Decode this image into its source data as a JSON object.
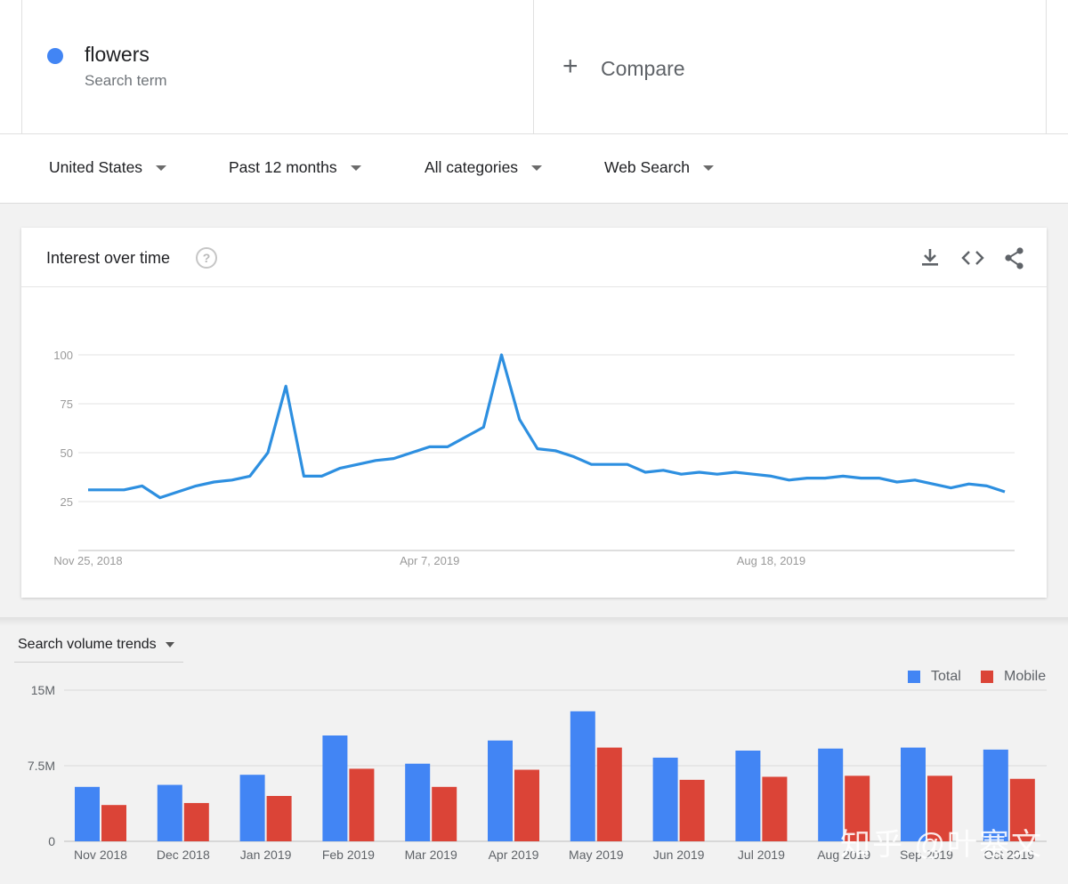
{
  "term": {
    "name": "flowers",
    "sublabel": "Search term",
    "color": "#4285f4"
  },
  "compare": {
    "plus": "+",
    "label": "Compare"
  },
  "filters": {
    "region": "United States",
    "time": "Past 12 months",
    "category": "All categories",
    "search_type": "Web Search"
  },
  "interest_card": {
    "title": "Interest over time",
    "help_glyph": "?",
    "icons": [
      "download-icon",
      "embed-code-icon",
      "share-icon"
    ]
  },
  "volume_section": {
    "label": "Search volume trends"
  },
  "watermark": "知乎 @叶寨文",
  "colors": {
    "line": "#2d8fe0",
    "total": "#4285f4",
    "mobile": "#db4437"
  },
  "chart_data": [
    {
      "type": "line",
      "title": "Interest over time",
      "yticks": [
        25,
        50,
        75,
        100
      ],
      "ylim": [
        0,
        100
      ],
      "x_tick_labels": [
        "Nov 25, 2018",
        "Apr 7, 2019",
        "Aug 18, 2019"
      ],
      "x_tick_index": [
        0,
        19,
        38
      ],
      "grid": true,
      "series": [
        {
          "values": [
            31,
            31,
            31,
            33,
            27,
            30,
            33,
            35,
            36,
            38,
            50,
            84,
            38,
            38,
            42,
            44,
            46,
            47,
            50,
            53,
            53,
            58,
            63,
            100,
            67,
            52,
            51,
            48,
            44,
            44,
            44,
            40,
            41,
            39,
            40,
            39,
            40,
            39,
            38,
            36,
            37,
            37,
            38,
            37,
            37,
            35,
            36,
            34,
            32,
            34,
            33,
            30
          ]
        }
      ]
    },
    {
      "type": "bar",
      "title": "Search volume trends",
      "categories": [
        "Nov 2018",
        "Dec 2018",
        "Jan 2019",
        "Feb 2019",
        "Mar 2019",
        "Apr 2019",
        "May 2019",
        "Jun 2019",
        "Jul 2019",
        "Aug 2019",
        "Sep 2019",
        "Oct 2019"
      ],
      "yticks": [
        "0",
        "7.5M",
        "15M"
      ],
      "ylim": [
        0,
        15000000
      ],
      "grid": true,
      "legend_position": "top-right",
      "series": [
        {
          "name": "Total",
          "values": [
            5400000,
            5600000,
            6600000,
            10500000,
            7700000,
            10000000,
            12900000,
            8300000,
            9000000,
            9200000,
            9300000,
            9100000
          ]
        },
        {
          "name": "Mobile",
          "values": [
            3600000,
            3800000,
            4500000,
            7200000,
            5400000,
            7100000,
            9300000,
            6100000,
            6400000,
            6500000,
            6500000,
            6200000
          ]
        }
      ]
    }
  ]
}
